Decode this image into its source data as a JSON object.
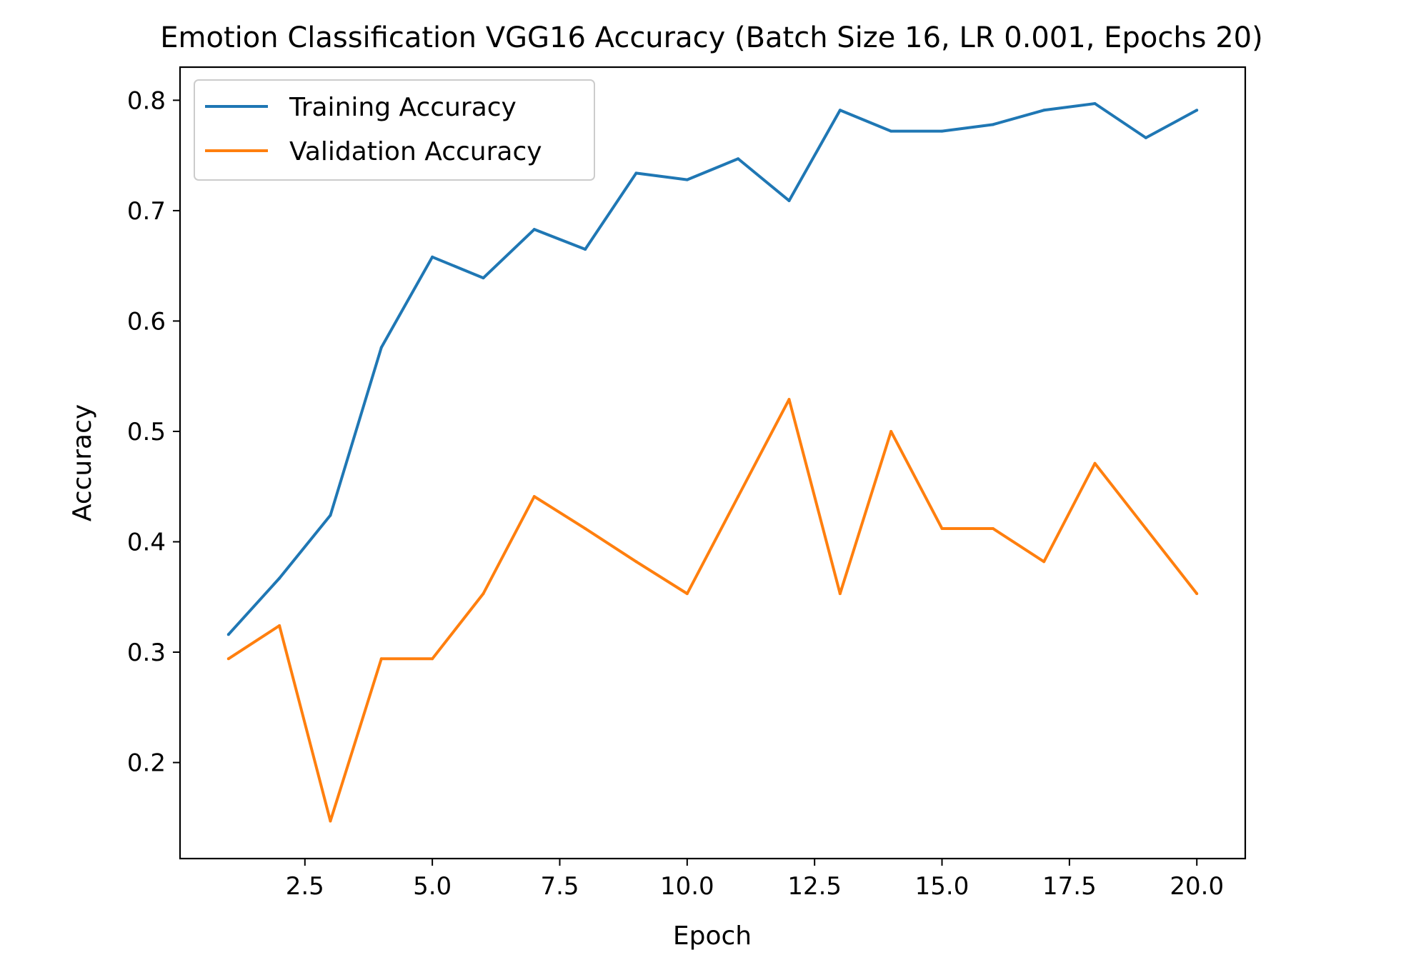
{
  "chart_data": {
    "type": "line",
    "title": "Emotion Classification VGG16 Accuracy (Batch Size 16, LR 0.001, Epochs 20)",
    "xlabel": "Epoch",
    "ylabel": "Accuracy",
    "xlim": [
      0.05,
      20.95
    ],
    "ylim": [
      0.113,
      0.83
    ],
    "x_ticks": [
      2.5,
      5.0,
      7.5,
      10.0,
      12.5,
      15.0,
      17.5,
      20.0
    ],
    "x_tick_labels": [
      "2.5",
      "5.0",
      "7.5",
      "10.0",
      "12.5",
      "15.0",
      "17.5",
      "20.0"
    ],
    "y_ticks": [
      0.2,
      0.3,
      0.4,
      0.5,
      0.6,
      0.7,
      0.8
    ],
    "y_tick_labels": [
      "0.2",
      "0.3",
      "0.4",
      "0.5",
      "0.6",
      "0.7",
      "0.8"
    ],
    "grid": false,
    "legend_position": "upper-left",
    "x": [
      1,
      2,
      3,
      4,
      5,
      6,
      7,
      8,
      9,
      10,
      11,
      12,
      13,
      14,
      15,
      16,
      17,
      18,
      19,
      20
    ],
    "series": [
      {
        "name": "Training Accuracy",
        "color": "#1f77b4",
        "values": [
          0.316,
          0.367,
          0.424,
          0.576,
          0.658,
          0.639,
          0.683,
          0.665,
          0.734,
          0.728,
          0.747,
          0.709,
          0.791,
          0.772,
          0.772,
          0.778,
          0.791,
          0.797,
          0.766,
          0.791
        ]
      },
      {
        "name": "Validation Accuracy",
        "color": "#ff7f0e",
        "values": [
          0.294,
          0.324,
          0.147,
          0.294,
          0.294,
          0.353,
          0.441,
          0.412,
          0.382,
          0.353,
          0.441,
          0.529,
          0.353,
          0.5,
          0.412,
          0.412,
          0.382,
          0.471,
          0.412,
          0.353
        ]
      }
    ]
  }
}
